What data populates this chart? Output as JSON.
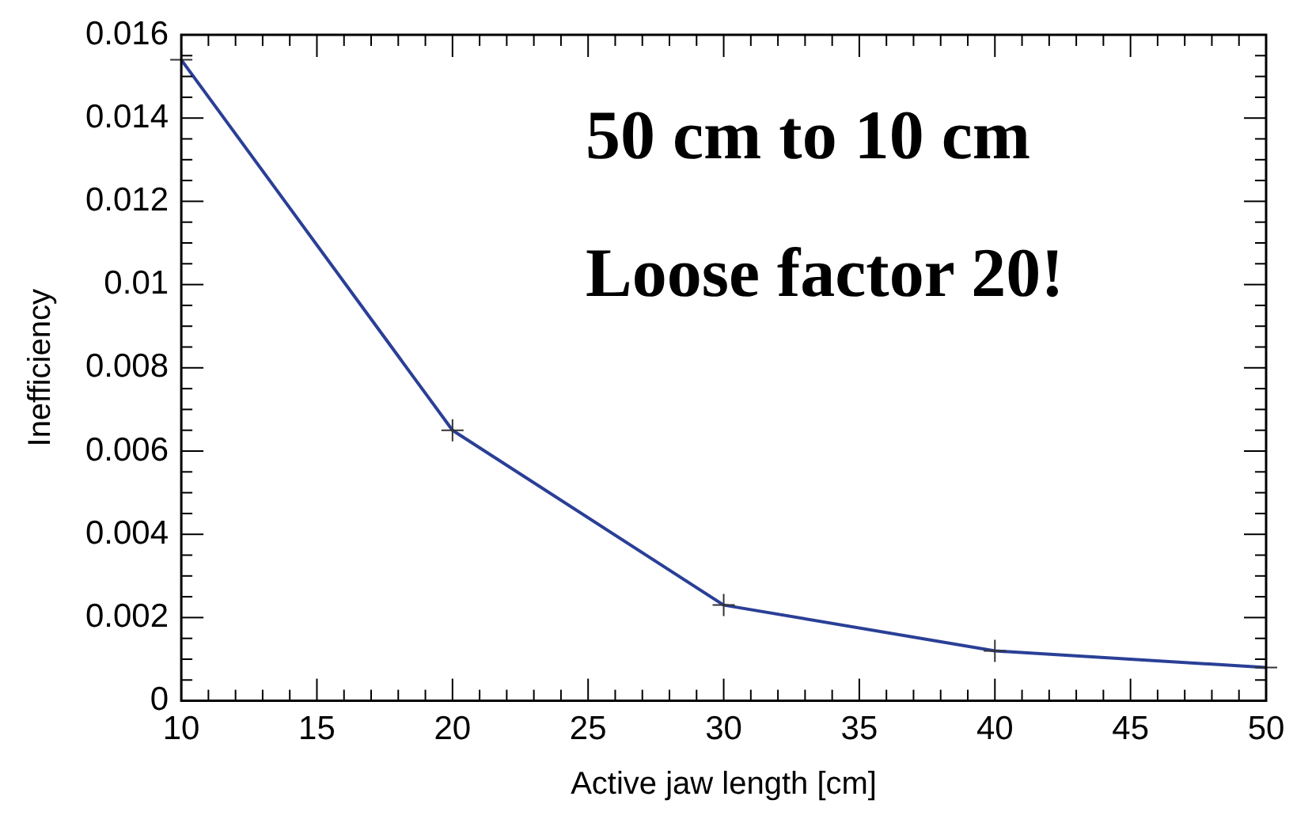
{
  "chart_data": {
    "type": "line",
    "xlabel": "Active jaw length [cm]",
    "ylabel": "Inefficiency",
    "x": [
      10,
      20,
      30,
      40,
      50
    ],
    "series": [
      {
        "color": "#2a3f96",
        "values": [
          0.0154,
          0.0065,
          0.0023,
          0.0012,
          0.0008
        ]
      }
    ],
    "xlim": [
      10,
      50
    ],
    "xticks": [
      10,
      15,
      20,
      25,
      30,
      35,
      40,
      45,
      50
    ],
    "ylim": [
      0,
      0.016
    ],
    "yticks": [
      0,
      0.002,
      0.004,
      0.006,
      0.008,
      0.01,
      0.012,
      0.014,
      0.016
    ],
    "marker": "cross",
    "line_style": "solid",
    "grid": false,
    "legend": false,
    "annotations": [
      "50 cm to 10 cm",
      "Loose factor 20!"
    ]
  }
}
